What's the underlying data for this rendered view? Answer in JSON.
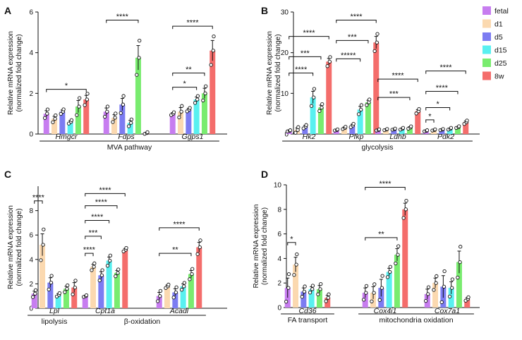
{
  "legend": {
    "items": [
      {
        "name": "fetal",
        "color": "#c77df0"
      },
      {
        "name": "d1",
        "color": "#fbd9b0"
      },
      {
        "name": "d5",
        "color": "#7c7cf2"
      },
      {
        "name": "d15",
        "color": "#59f0f0"
      },
      {
        "name": "d25",
        "color": "#79ec6f"
      },
      {
        "name": "8w",
        "color": "#f46d6b"
      }
    ]
  },
  "chart_data": [
    {
      "panel": "A",
      "type": "bar",
      "ylabel_lines": [
        "Relative mRNA expression",
        "(normalized fold change)"
      ],
      "ylim": [
        0,
        6
      ],
      "yticks": [
        0,
        2,
        4,
        6
      ],
      "series": [
        "fetal",
        "d1",
        "d5",
        "d15",
        "d25",
        "8w"
      ],
      "genes": [
        {
          "name": "Hmgcr",
          "values": [
            1.0,
            0.75,
            1.1,
            0.6,
            1.35,
            1.7
          ],
          "errors": [
            0.15,
            0.12,
            0.08,
            0.06,
            0.3,
            0.2
          ]
        },
        {
          "name": "Fdps",
          "values": [
            1.1,
            0.8,
            1.45,
            0.55,
            3.75,
            0.05
          ],
          "errors": [
            0.18,
            0.15,
            0.3,
            0.12,
            0.6,
            0.03
          ]
        },
        {
          "name": "Ggps1",
          "values": [
            1.0,
            1.1,
            1.2,
            1.7,
            2.0,
            4.1
          ],
          "errors": [
            0.05,
            0.2,
            0.06,
            0.12,
            0.25,
            0.5
          ]
        }
      ],
      "groups": [
        {
          "label": "MVA pathway",
          "genes": [
            0,
            1,
            2
          ]
        }
      ],
      "brackets": [
        {
          "gene": 0,
          "from": 0,
          "to": 5,
          "y": 2.2,
          "label": "*"
        },
        {
          "gene": 1,
          "from": 0,
          "to": 4,
          "y": 5.6,
          "label": "****"
        },
        {
          "gene": 2,
          "from": 0,
          "to": 5,
          "y": 5.3,
          "label": "****"
        },
        {
          "gene": 2,
          "from": 0,
          "to": 4,
          "y": 3.0,
          "label": "**"
        },
        {
          "gene": 2,
          "from": 0,
          "to": 3,
          "y": 2.3,
          "label": "*"
        }
      ]
    },
    {
      "panel": "B",
      "type": "bar",
      "ylabel_lines": [
        "Relative mRNA expression",
        "(normalized fold change)"
      ],
      "ylim": [
        0,
        30
      ],
      "yticks": [
        0,
        10,
        20,
        30
      ],
      "series": [
        "fetal",
        "d1",
        "d5",
        "d15",
        "d25",
        "8w"
      ],
      "genes": [
        {
          "name": "Hk2",
          "values": [
            0.8,
            1.0,
            1.8,
            9.0,
            6.5,
            17.8
          ],
          "errors": [
            0.1,
            0.5,
            0.3,
            1.5,
            0.6,
            0.8
          ]
        },
        {
          "name": "Pfkp",
          "values": [
            1.0,
            1.5,
            2.1,
            6.0,
            7.8,
            22.5
          ],
          "errors": [
            0.1,
            0.2,
            0.3,
            0.8,
            0.5,
            1.5
          ]
        },
        {
          "name": "Ldhb",
          "values": [
            1.0,
            1.1,
            1.2,
            1.3,
            1.6,
            5.6
          ],
          "errors": [
            0.1,
            0.1,
            0.1,
            0.15,
            0.2,
            0.4
          ]
        },
        {
          "name": "Pdk2",
          "values": [
            0.8,
            1.0,
            1.1,
            1.3,
            1.7,
            2.9
          ],
          "errors": [
            0.1,
            0.1,
            0.1,
            0.15,
            0.15,
            0.3
          ]
        }
      ],
      "groups": [
        {
          "label": "glycolysis",
          "genes": [
            0,
            1,
            2,
            3
          ]
        }
      ],
      "brackets": [
        {
          "gene": 0,
          "from": 0,
          "to": 5,
          "y": 24.0,
          "label": "****"
        },
        {
          "gene": 0,
          "from": 0,
          "to": 4,
          "y": 19.0,
          "label": "***"
        },
        {
          "gene": 0,
          "from": 0,
          "to": 3,
          "y": 15.0,
          "label": "****"
        },
        {
          "gene": 1,
          "from": 0,
          "to": 5,
          "y": 28.0,
          "label": "****"
        },
        {
          "gene": 1,
          "from": 0,
          "to": 4,
          "y": 23.0,
          "label": "***"
        },
        {
          "gene": 1,
          "from": 0,
          "to": 3,
          "y": 18.5,
          "label": "*****"
        },
        {
          "gene": 2,
          "from": 0,
          "to": 5,
          "y": 13.5,
          "label": "****"
        },
        {
          "gene": 2,
          "from": 0,
          "to": 4,
          "y": 9.0,
          "label": "***"
        },
        {
          "gene": 3,
          "from": 0,
          "to": 5,
          "y": 15.5,
          "label": "****"
        },
        {
          "gene": 3,
          "from": 0,
          "to": 4,
          "y": 10.5,
          "label": "****"
        },
        {
          "gene": 3,
          "from": 0,
          "to": 3,
          "y": 6.5,
          "label": "*"
        },
        {
          "gene": 3,
          "from": 0,
          "to": 1,
          "y": 3.5,
          "label": "*"
        }
      ]
    },
    {
      "panel": "C",
      "type": "bar",
      "ylabel_lines": [
        "Relative mRNA expression",
        "(normalized fold change)"
      ],
      "ylim": [
        0,
        10
      ],
      "yticks": [
        0,
        2,
        4,
        6,
        8
      ],
      "series": [
        "fetal",
        "d1",
        "d5",
        "d15",
        "d25",
        "8w"
      ],
      "genes": [
        {
          "name": "Lpl",
          "values": [
            1.2,
            5.2,
            2.1,
            1.1,
            1.6,
            1.7
          ],
          "errors": [
            0.2,
            0.9,
            0.4,
            0.1,
            0.2,
            0.4
          ]
        },
        {
          "name": "Cpt1a",
          "values": [
            1.0,
            3.4,
            2.7,
            3.9,
            2.9,
            4.8
          ],
          "errors": [
            0.05,
            0.2,
            0.3,
            0.3,
            0.2,
            0.1
          ]
        },
        {
          "name": "Acadl",
          "values": [
            1.0,
            1.8,
            1.3,
            1.8,
            2.8,
            5.0
          ],
          "errors": [
            0.3,
            0.1,
            0.3,
            0.2,
            0.3,
            0.4
          ]
        }
      ],
      "groups": [
        {
          "label": "lipolysis",
          "genes": [
            0
          ]
        },
        {
          "label": "β-oxidation",
          "genes": [
            1,
            2
          ]
        }
      ],
      "brackets": [
        {
          "gene": 0,
          "from": 0,
          "to": 1,
          "y": 8.8,
          "label": "****"
        },
        {
          "gene": 1,
          "from": 0,
          "to": 5,
          "y": 9.4,
          "label": "****"
        },
        {
          "gene": 1,
          "from": 0,
          "to": 4,
          "y": 8.4,
          "label": "****"
        },
        {
          "gene": 1,
          "from": 0,
          "to": 3,
          "y": 7.2,
          "label": "****"
        },
        {
          "gene": 1,
          "from": 0,
          "to": 2,
          "y": 5.9,
          "label": "***"
        },
        {
          "gene": 1,
          "from": 0,
          "to": 1,
          "y": 4.5,
          "label": "****"
        },
        {
          "gene": 2,
          "from": 0,
          "to": 5,
          "y": 6.6,
          "label": "****"
        },
        {
          "gene": 2,
          "from": 0,
          "to": 4,
          "y": 4.5,
          "label": "**"
        }
      ]
    },
    {
      "panel": "D",
      "type": "bar",
      "ylabel_lines": [
        "Relative mRNA expression",
        "(normalized fold change)"
      ],
      "ylim": [
        0,
        10
      ],
      "yticks": [
        0,
        2,
        4,
        6,
        8,
        10
      ],
      "series": [
        "fetal",
        "d1",
        "d5",
        "d15",
        "d25",
        "8w"
      ],
      "genes": [
        {
          "name": "Cd36",
          "values": [
            1.6,
            3.5,
            1.3,
            1.5,
            1.5,
            0.8
          ],
          "errors": [
            0.8,
            0.6,
            0.3,
            0.2,
            0.3,
            0.2
          ]
        },
        {
          "name": "Cox4i1",
          "values": [
            1.2,
            1.2,
            1.6,
            2.9,
            4.3,
            8.0
          ],
          "errors": [
            0.4,
            0.5,
            0.7,
            0.3,
            0.5,
            0.5
          ]
        },
        {
          "name": "Cox7a1",
          "values": [
            1.1,
            2.0,
            1.7,
            1.6,
            3.7,
            0.7
          ],
          "errors": [
            0.4,
            0.4,
            0.9,
            0.5,
            0.9,
            0.1
          ]
        }
      ],
      "groups": [
        {
          "label": "FA transport",
          "genes": [
            0
          ]
        },
        {
          "label": "mitochondria oxidation",
          "genes": [
            1,
            2
          ]
        }
      ],
      "brackets": [
        {
          "gene": 0,
          "from": 0,
          "to": 1,
          "y": 5.3,
          "label": "*"
        },
        {
          "gene": 1,
          "from": 0,
          "to": 5,
          "y": 9.8,
          "label": "****"
        },
        {
          "gene": 1,
          "from": 0,
          "to": 4,
          "y": 5.7,
          "label": "**"
        }
      ]
    }
  ]
}
